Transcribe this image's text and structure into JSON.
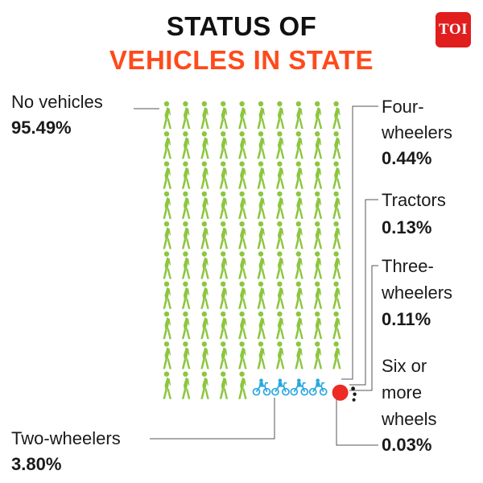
{
  "title_line1": "STATUS OF",
  "title_line2": "VEHICLES IN STATE",
  "logo_text": "TOI",
  "colors": {
    "walker": "#8cc63f",
    "bike": "#29a8e0",
    "dot": "#ee2a24",
    "accent": "#ff4a1c"
  },
  "chart_data": {
    "type": "pictograph",
    "title": "STATUS OF VEHICLES IN STATE",
    "unit": "%",
    "icons_per_row": 10,
    "rows": 10,
    "categories": [
      {
        "key": "none",
        "label": "No vehicles",
        "value_label": "95.49%",
        "value": 95.49,
        "icon": "walking-person-icon"
      },
      {
        "key": "two",
        "label": "Two-wheelers",
        "value_label": "3.80%",
        "value": 3.8,
        "icon": "motorbike-icon"
      },
      {
        "key": "four",
        "label": "Four-wheelers",
        "value_label": "0.44%",
        "value": 0.44,
        "icon": "red-dot-icon"
      },
      {
        "key": "trac",
        "label": "Tractors",
        "value_label": "0.13%",
        "value": 0.13,
        "icon": "small-dot-icon"
      },
      {
        "key": "three",
        "label": "Three-wheelers",
        "value_label": "0.11%",
        "value": 0.11,
        "icon": "small-dot-icon"
      },
      {
        "key": "six",
        "label": "Six or more wheels",
        "value_label": "0.03%",
        "value": 0.03,
        "icon": "small-dot-icon"
      }
    ],
    "label_lines": {
      "four": [
        "Four-",
        "wheelers"
      ],
      "three": [
        "Three-",
        "wheelers"
      ],
      "six": [
        "Six or",
        "more",
        "wheels"
      ]
    }
  }
}
